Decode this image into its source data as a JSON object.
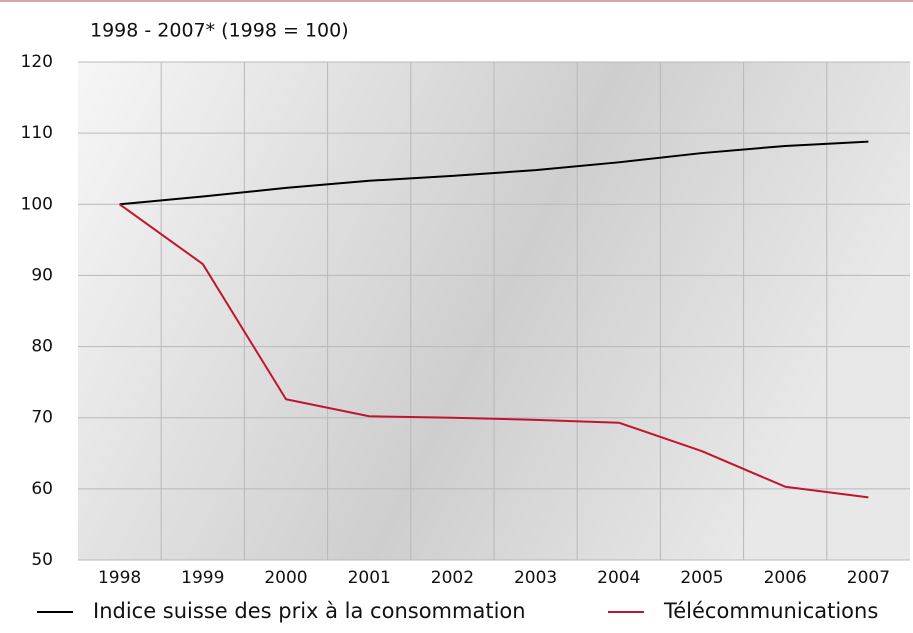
{
  "chart_data": {
    "type": "line",
    "title": "1998 - 2007* (1998 = 100)",
    "categories": [
      "1998",
      "1999",
      "2000",
      "2001",
      "2002",
      "2003",
      "2004",
      "2005",
      "2006",
      "2007"
    ],
    "series": [
      {
        "name": "Indice suisse des prix à la consommation",
        "color": "#000000",
        "values": [
          100,
          101.1,
          102.3,
          103.3,
          104.0,
          104.8,
          105.9,
          107.2,
          108.2,
          108.8
        ]
      },
      {
        "name": "Télécommunications",
        "color": "#c0152f",
        "values": [
          100,
          91.6,
          72.6,
          70.2,
          70.0,
          69.7,
          69.3,
          65.3,
          60.3,
          58.8
        ]
      }
    ],
    "ylim": [
      50,
      120
    ],
    "yticks": [
      50,
      60,
      70,
      80,
      90,
      100,
      110,
      120
    ],
    "grid": true,
    "legend": "bottom"
  }
}
